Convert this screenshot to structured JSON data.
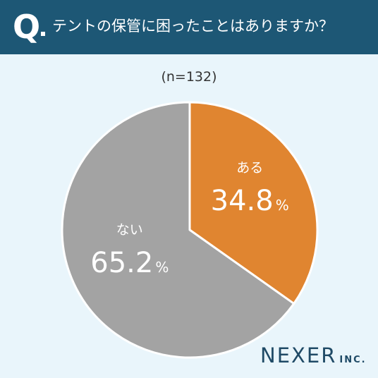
{
  "header": {
    "q_mark": "Q",
    "question": "テントの保管に困ったことはありますか？"
  },
  "sample_size": "(n=132)",
  "brand": {
    "name": "NEXER",
    "suffix": "INC."
  },
  "colors": {
    "header_bg": "#1d5775",
    "page_bg": "#e9f5fb",
    "slice_yes": "#e08530",
    "slice_no": "#a3a3a3"
  },
  "chart_data": {
    "type": "pie",
    "title": "テントの保管に困ったことはありますか？",
    "slices": [
      {
        "label": "ある",
        "value": 34.8,
        "unit": "%",
        "color": "#e08530"
      },
      {
        "label": "ない",
        "value": 65.2,
        "unit": "%",
        "color": "#a3a3a3"
      }
    ]
  }
}
